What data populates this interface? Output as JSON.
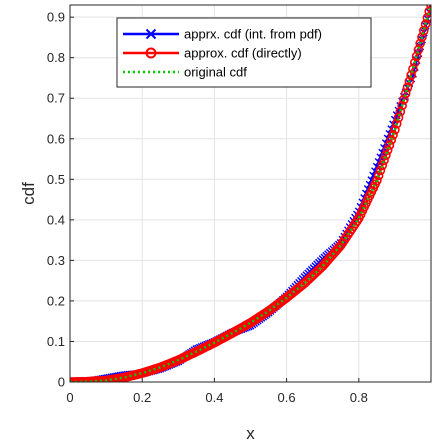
{
  "chart_data": {
    "type": "line",
    "xlabel": "x",
    "ylabel": "cdf",
    "xlim": [
      0,
      1
    ],
    "ylim": [
      0,
      0.93
    ],
    "x_ticks": [
      0,
      0.2,
      0.4,
      0.6,
      0.8
    ],
    "x_tick_labels": [
      "0",
      "0.2",
      "0.4",
      "0.6",
      "0.8"
    ],
    "y_ticks": [
      0,
      0.1,
      0.2,
      0.3,
      0.4,
      0.5,
      0.6,
      0.7,
      0.8,
      0.9
    ],
    "y_tick_labels": [
      "0",
      "0.1",
      "0.2",
      "0.3",
      "0.4",
      "0.5",
      "0.6",
      "0.7",
      "0.8",
      "0.9"
    ],
    "grid": true,
    "legend_position": "top-right",
    "series": [
      {
        "name": "apprx. cdf (int. from pdf)",
        "color": "#0000ff",
        "marker": "x",
        "x": [
          0,
          0.05,
          0.1,
          0.15,
          0.2,
          0.25,
          0.3,
          0.35,
          0.4,
          0.45,
          0.5,
          0.55,
          0.6,
          0.65,
          0.7,
          0.75,
          0.8,
          0.85,
          0.9,
          0.95,
          1.0
        ],
        "y": [
          0,
          0.001,
          0.009,
          0.017,
          0.021,
          0.033,
          0.051,
          0.081,
          0.099,
          0.122,
          0.139,
          0.171,
          0.211,
          0.259,
          0.303,
          0.343,
          0.421,
          0.531,
          0.647,
          0.76,
          0.93
        ]
      },
      {
        "name": "approx. cdf (directly)",
        "color": "#ff0000",
        "marker": "o",
        "x": [
          0,
          0.05,
          0.1,
          0.15,
          0.2,
          0.25,
          0.3,
          0.35,
          0.4,
          0.45,
          0.5,
          0.55,
          0.6,
          0.65,
          0.7,
          0.75,
          0.8,
          0.85,
          0.9,
          0.95,
          1.0
        ],
        "y": [
          0,
          0.001,
          0.004,
          0.011,
          0.022,
          0.036,
          0.054,
          0.075,
          0.097,
          0.121,
          0.146,
          0.175,
          0.208,
          0.244,
          0.286,
          0.337,
          0.404,
          0.497,
          0.622,
          0.772,
          0.93
        ]
      },
      {
        "name": "original cdf",
        "color": "#00cc00",
        "marker": "none",
        "x": [
          0,
          0.05,
          0.1,
          0.15,
          0.2,
          0.25,
          0.3,
          0.35,
          0.4,
          0.45,
          0.5,
          0.55,
          0.6,
          0.65,
          0.7,
          0.75,
          0.8,
          0.85,
          0.9,
          0.95,
          1.0
        ],
        "y": [
          0,
          0.001,
          0.004,
          0.011,
          0.022,
          0.036,
          0.054,
          0.075,
          0.097,
          0.121,
          0.146,
          0.175,
          0.208,
          0.244,
          0.286,
          0.337,
          0.404,
          0.497,
          0.622,
          0.772,
          0.93
        ]
      }
    ]
  }
}
